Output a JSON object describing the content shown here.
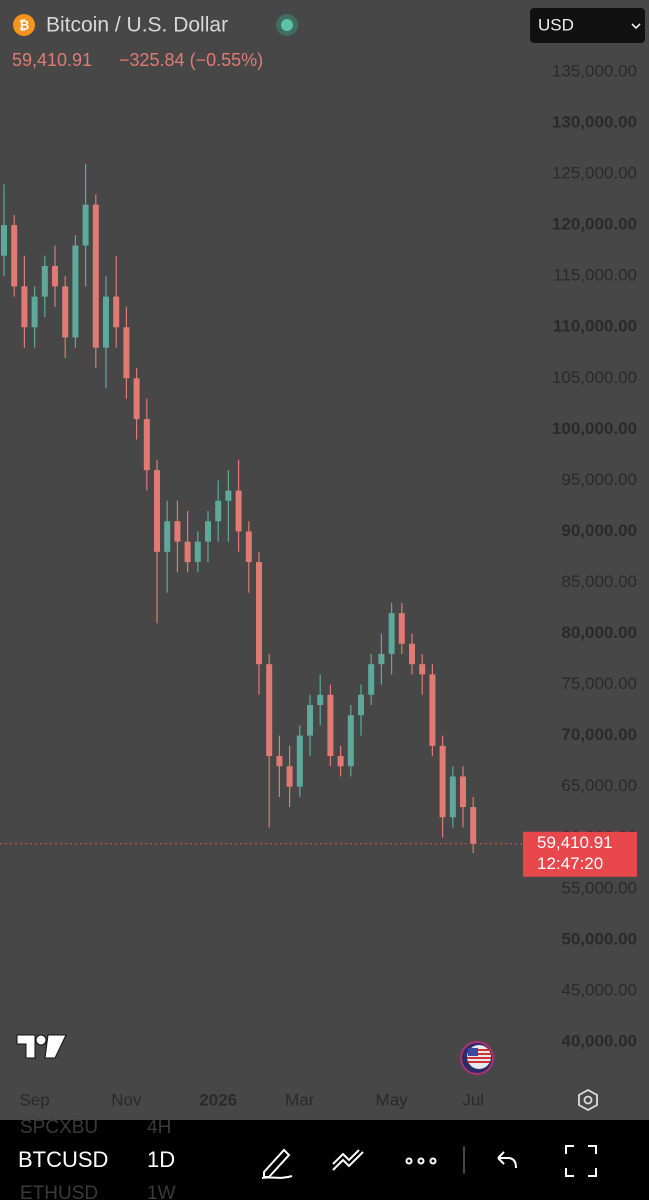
{
  "header": {
    "title": "Bitcoin / U.S. Dollar",
    "price": "59,410.91",
    "change": "−325.84 (−0.55%)",
    "currency": "USD"
  },
  "chart_data": {
    "type": "candlestick",
    "categories": [
      null,
      null,
      null,
      "Sep",
      null,
      null,
      null,
      null,
      null,
      null,
      null,
      null,
      "Nov",
      null,
      null,
      null,
      null,
      null,
      null,
      null,
      null,
      "2026",
      null,
      null,
      null,
      null,
      null,
      null,
      null,
      "Mar",
      null,
      null,
      null,
      null,
      null,
      null,
      null,
      null,
      "May",
      null,
      null,
      null,
      null,
      null,
      null,
      null,
      "Jul"
    ],
    "open": [
      117000,
      120000,
      114000,
      110000,
      113000,
      116000,
      114000,
      109000,
      118000,
      122000,
      108000,
      113000,
      110000,
      105000,
      101000,
      96000,
      88000,
      91000,
      89000,
      87000,
      89000,
      91000,
      93000,
      94000,
      90000,
      87000,
      77000,
      68000,
      67000,
      65000,
      70000,
      73000,
      74000,
      68000,
      67000,
      72000,
      74000,
      77000,
      78000,
      82000,
      79000,
      77000,
      76000,
      69000,
      62000,
      66000,
      63000
    ],
    "high": [
      124000,
      121000,
      117000,
      114000,
      117000,
      118000,
      115000,
      119000,
      126000,
      123000,
      115000,
      117000,
      112000,
      106000,
      103000,
      97000,
      93000,
      93000,
      92000,
      90000,
      92000,
      95000,
      96000,
      97000,
      91000,
      88000,
      78000,
      70000,
      69000,
      71000,
      74000,
      76000,
      75000,
      69000,
      73000,
      75000,
      78000,
      80000,
      83000,
      83000,
      80000,
      78000,
      77000,
      70000,
      67000,
      67000,
      64000
    ],
    "low": [
      115000,
      113000,
      108000,
      108000,
      111000,
      112000,
      107000,
      108000,
      114000,
      106000,
      104000,
      108000,
      103000,
      99000,
      94000,
      81000,
      84000,
      86000,
      86000,
      86000,
      87000,
      89000,
      89000,
      88000,
      84000,
      74000,
      61000,
      64000,
      63000,
      64000,
      68000,
      71000,
      67000,
      66000,
      66000,
      70000,
      73000,
      75000,
      76000,
      78000,
      76000,
      74000,
      68000,
      60000,
      61000,
      61000,
      58500
    ],
    "close": [
      120000,
      114000,
      110000,
      113000,
      116000,
      114000,
      109000,
      118000,
      122000,
      108000,
      113000,
      110000,
      105000,
      101000,
      96000,
      88000,
      91000,
      89000,
      87000,
      89000,
      91000,
      93000,
      94000,
      90000,
      87000,
      77000,
      68000,
      67000,
      65000,
      70000,
      73000,
      74000,
      68000,
      67000,
      72000,
      74000,
      77000,
      78000,
      82000,
      79000,
      77000,
      76000,
      69000,
      62000,
      66000,
      63000,
      59410.91
    ],
    "up_color": "#5ea99b",
    "down_color": "#e07a72",
    "ylim": [
      35780,
      142050
    ],
    "yticks": [
      {
        "value": 40000,
        "label": "40,000.00"
      },
      {
        "value": 45000,
        "label": "45,000.00"
      },
      {
        "value": 50000,
        "label": "50,000.00"
      },
      {
        "value": 55000,
        "label": "55,000.00"
      },
      {
        "value": 60000,
        "label": "60,000.00"
      },
      {
        "value": 65000,
        "label": "65,000.00"
      },
      {
        "value": 70000,
        "label": "70,000.00"
      },
      {
        "value": 75000,
        "label": "75,000.00"
      },
      {
        "value": 80000,
        "label": "80,000.00"
      },
      {
        "value": 85000,
        "label": "85,000.00"
      },
      {
        "value": 90000,
        "label": "90,000.00"
      },
      {
        "value": 95000,
        "label": "95,000.00"
      },
      {
        "value": 100000,
        "label": "100,000.00"
      },
      {
        "value": 105000,
        "label": "105,000.00"
      },
      {
        "value": 110000,
        "label": "110,000.00"
      },
      {
        "value": 115000,
        "label": "115,000.00"
      },
      {
        "value": 120000,
        "label": "120,000.00"
      },
      {
        "value": 125000,
        "label": "125,000.00"
      },
      {
        "value": 130000,
        "label": "130,000.00"
      },
      {
        "value": 135000,
        "label": "135,000.00"
      }
    ],
    "price_line": {
      "value": 59410.91,
      "label": "59,410.91",
      "countdown": "12:47:20"
    }
  },
  "toolbar": {
    "symbol": "BTCUSD",
    "interval": "1D",
    "behind": [
      {
        "symbol": "SPCXBU",
        "interval": "4H"
      },
      {
        "symbol": "ETHUSD",
        "interval": "1W"
      }
    ]
  }
}
